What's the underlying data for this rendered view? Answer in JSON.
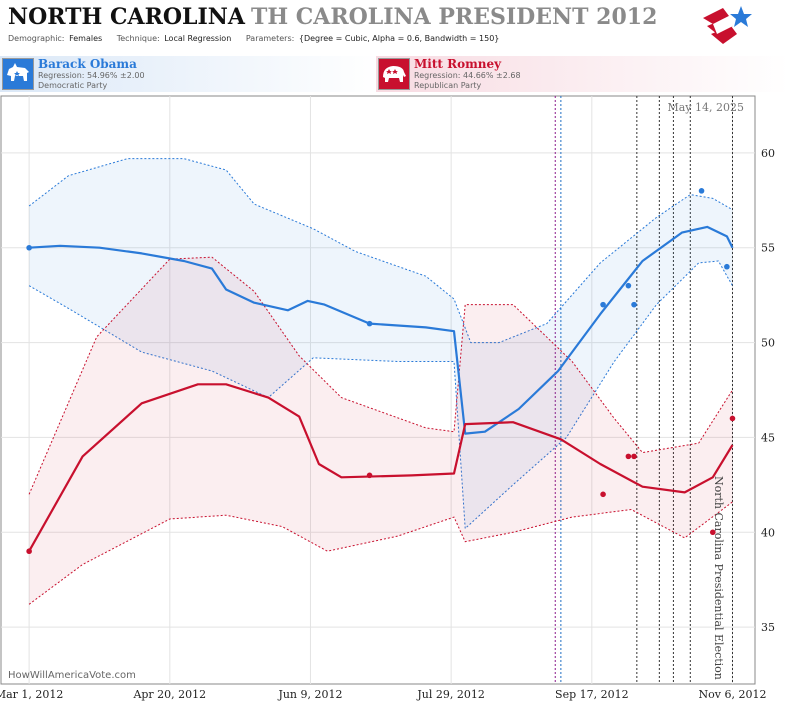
{
  "header": {
    "state": "NORTH CAROLINA",
    "race": "TH CAROLINA PRESIDENT 2012",
    "demographic_label": "Demographic:",
    "demographic_value": "Females",
    "technique_label": "Technique:",
    "technique_value": "Local Regression",
    "parameters_label": "Parameters:",
    "parameters_value": "{Degree = Cubic, Alpha = 0.6, Bandwidth = 150}"
  },
  "candidates": {
    "obama": {
      "name": "Barack Obama",
      "regression": "Regression: 54.96% ±2.00",
      "party": "Democratic Party",
      "color": "#2a7ad8"
    },
    "romney": {
      "name": "Mitt Romney",
      "regression": "Regression: 44.66% ±2.68",
      "party": "Republican Party",
      "color": "#c8102e"
    }
  },
  "chart_data": {
    "type": "line",
    "date_label": "May 14, 2025",
    "election_label": "North Carolina Presidential Election",
    "watermark": "HowWillAmericaVote.com",
    "x_tick_labels": [
      "Mar 1, 2012",
      "Apr 20, 2012",
      "Jun 9, 2012",
      "Jul 29, 2012",
      "Sep 17, 2012",
      "Nov 6, 2012"
    ],
    "x_ticks": [
      "2012-03-01",
      "2012-04-20",
      "2012-06-09",
      "2012-07-29",
      "2012-09-17",
      "2012-11-06"
    ],
    "x_range": [
      "2012-02-20",
      "2012-11-14"
    ],
    "y_ticks": [
      35,
      40,
      45,
      50,
      55,
      60
    ],
    "ylim": [
      32,
      63
    ],
    "grid": true,
    "event_lines": [
      {
        "date": "2012-09-04",
        "color": "#8b1a8b"
      },
      {
        "date": "2012-09-06",
        "color": "#1f6fc4"
      },
      {
        "date": "2012-10-03",
        "color": "#333333"
      },
      {
        "date": "2012-10-11",
        "color": "#333333"
      },
      {
        "date": "2012-10-16",
        "color": "#333333"
      },
      {
        "date": "2012-10-22",
        "color": "#333333"
      },
      {
        "date": "2012-11-06",
        "color": "#333333"
      }
    ],
    "series": [
      {
        "name": "Barack Obama",
        "color": "#2a7ad8",
        "points": [
          {
            "date": "2012-03-01",
            "value": 55
          },
          {
            "date": "2012-06-30",
            "value": 51
          },
          {
            "date": "2012-09-21",
            "value": 52
          },
          {
            "date": "2012-09-30",
            "value": 53
          },
          {
            "date": "2012-10-02",
            "value": 52
          },
          {
            "date": "2012-10-26",
            "value": 58
          },
          {
            "date": "2012-11-04",
            "value": 54
          }
        ],
        "trend": [
          {
            "date": "2012-03-01",
            "value": 55.0
          },
          {
            "date": "2012-03-12",
            "value": 55.1
          },
          {
            "date": "2012-03-26",
            "value": 55.0
          },
          {
            "date": "2012-04-10",
            "value": 54.7
          },
          {
            "date": "2012-04-25",
            "value": 54.3
          },
          {
            "date": "2012-05-05",
            "value": 53.9
          },
          {
            "date": "2012-05-10",
            "value": 52.8
          },
          {
            "date": "2012-05-20",
            "value": 52.1
          },
          {
            "date": "2012-06-01",
            "value": 51.7
          },
          {
            "date": "2012-06-08",
            "value": 52.2
          },
          {
            "date": "2012-06-14",
            "value": 52.0
          },
          {
            "date": "2012-06-30",
            "value": 51.0
          },
          {
            "date": "2012-07-20",
            "value": 50.8
          },
          {
            "date": "2012-07-30",
            "value": 50.6
          },
          {
            "date": "2012-08-03",
            "value": 45.2
          },
          {
            "date": "2012-08-10",
            "value": 45.3
          },
          {
            "date": "2012-08-22",
            "value": 46.5
          },
          {
            "date": "2012-09-05",
            "value": 48.5
          },
          {
            "date": "2012-09-20",
            "value": 51.5
          },
          {
            "date": "2012-10-05",
            "value": 54.3
          },
          {
            "date": "2012-10-19",
            "value": 55.8
          },
          {
            "date": "2012-10-28",
            "value": 56.1
          },
          {
            "date": "2012-11-04",
            "value": 55.6
          },
          {
            "date": "2012-11-06",
            "value": 55.0
          }
        ],
        "upper": [
          {
            "date": "2012-03-01",
            "value": 57.2
          },
          {
            "date": "2012-03-15",
            "value": 58.8
          },
          {
            "date": "2012-04-05",
            "value": 59.7
          },
          {
            "date": "2012-04-25",
            "value": 59.7
          },
          {
            "date": "2012-05-10",
            "value": 59.1
          },
          {
            "date": "2012-05-20",
            "value": 57.3
          },
          {
            "date": "2012-06-10",
            "value": 56.0
          },
          {
            "date": "2012-06-25",
            "value": 54.8
          },
          {
            "date": "2012-07-20",
            "value": 53.5
          },
          {
            "date": "2012-07-30",
            "value": 52.3
          },
          {
            "date": "2012-08-05",
            "value": 50.0
          },
          {
            "date": "2012-08-15",
            "value": 50.0
          },
          {
            "date": "2012-09-01",
            "value": 51.0
          },
          {
            "date": "2012-09-20",
            "value": 54.2
          },
          {
            "date": "2012-10-10",
            "value": 56.6
          },
          {
            "date": "2012-10-22",
            "value": 57.8
          },
          {
            "date": "2012-10-30",
            "value": 57.6
          },
          {
            "date": "2012-11-06",
            "value": 57.0
          }
        ],
        "lower": [
          {
            "date": "2012-03-01",
            "value": 53.0
          },
          {
            "date": "2012-03-15",
            "value": 51.8
          },
          {
            "date": "2012-04-10",
            "value": 49.5
          },
          {
            "date": "2012-05-05",
            "value": 48.5
          },
          {
            "date": "2012-05-25",
            "value": 47.1
          },
          {
            "date": "2012-06-10",
            "value": 49.2
          },
          {
            "date": "2012-07-10",
            "value": 49.0
          },
          {
            "date": "2012-07-30",
            "value": 49.0
          },
          {
            "date": "2012-08-03",
            "value": 40.2
          },
          {
            "date": "2012-08-20",
            "value": 42.5
          },
          {
            "date": "2012-09-08",
            "value": 45.0
          },
          {
            "date": "2012-09-25",
            "value": 49.0
          },
          {
            "date": "2012-10-10",
            "value": 52.0
          },
          {
            "date": "2012-10-25",
            "value": 54.2
          },
          {
            "date": "2012-11-01",
            "value": 54.3
          },
          {
            "date": "2012-11-06",
            "value": 53.0
          }
        ]
      },
      {
        "name": "Mitt Romney",
        "color": "#c8102e",
        "points": [
          {
            "date": "2012-03-01",
            "value": 39
          },
          {
            "date": "2012-06-30",
            "value": 43
          },
          {
            "date": "2012-09-21",
            "value": 42
          },
          {
            "date": "2012-09-30",
            "value": 44
          },
          {
            "date": "2012-10-02",
            "value": 44
          },
          {
            "date": "2012-10-30",
            "value": 40
          },
          {
            "date": "2012-11-06",
            "value": 46
          }
        ],
        "trend": [
          {
            "date": "2012-03-01",
            "value": 39.0
          },
          {
            "date": "2012-03-20",
            "value": 44.0
          },
          {
            "date": "2012-04-10",
            "value": 46.8
          },
          {
            "date": "2012-04-30",
            "value": 47.8
          },
          {
            "date": "2012-05-10",
            "value": 47.8
          },
          {
            "date": "2012-05-25",
            "value": 47.1
          },
          {
            "date": "2012-06-05",
            "value": 46.1
          },
          {
            "date": "2012-06-12",
            "value": 43.6
          },
          {
            "date": "2012-06-20",
            "value": 42.9
          },
          {
            "date": "2012-07-15",
            "value": 43.0
          },
          {
            "date": "2012-07-30",
            "value": 43.1
          },
          {
            "date": "2012-08-03",
            "value": 45.7
          },
          {
            "date": "2012-08-20",
            "value": 45.8
          },
          {
            "date": "2012-09-06",
            "value": 44.9
          },
          {
            "date": "2012-09-20",
            "value": 43.6
          },
          {
            "date": "2012-10-05",
            "value": 42.4
          },
          {
            "date": "2012-10-20",
            "value": 42.1
          },
          {
            "date": "2012-10-30",
            "value": 42.9
          },
          {
            "date": "2012-11-06",
            "value": 44.6
          }
        ],
        "upper": [
          {
            "date": "2012-03-01",
            "value": 42.0
          },
          {
            "date": "2012-03-25",
            "value": 50.3
          },
          {
            "date": "2012-04-20",
            "value": 54.4
          },
          {
            "date": "2012-05-05",
            "value": 54.5
          },
          {
            "date": "2012-05-20",
            "value": 52.7
          },
          {
            "date": "2012-06-05",
            "value": 49.3
          },
          {
            "date": "2012-06-20",
            "value": 47.1
          },
          {
            "date": "2012-07-20",
            "value": 45.5
          },
          {
            "date": "2012-07-30",
            "value": 45.3
          },
          {
            "date": "2012-08-03",
            "value": 52.0
          },
          {
            "date": "2012-08-20",
            "value": 52.0
          },
          {
            "date": "2012-09-10",
            "value": 49.0
          },
          {
            "date": "2012-09-25",
            "value": 46.0
          },
          {
            "date": "2012-10-05",
            "value": 44.2
          },
          {
            "date": "2012-10-25",
            "value": 44.7
          },
          {
            "date": "2012-11-06",
            "value": 47.5
          }
        ],
        "lower": [
          {
            "date": "2012-03-01",
            "value": 36.2
          },
          {
            "date": "2012-03-20",
            "value": 38.3
          },
          {
            "date": "2012-04-20",
            "value": 40.7
          },
          {
            "date": "2012-05-10",
            "value": 40.9
          },
          {
            "date": "2012-05-30",
            "value": 40.3
          },
          {
            "date": "2012-06-15",
            "value": 39.0
          },
          {
            "date": "2012-07-10",
            "value": 39.8
          },
          {
            "date": "2012-07-30",
            "value": 40.8
          },
          {
            "date": "2012-08-03",
            "value": 39.5
          },
          {
            "date": "2012-08-20",
            "value": 40.0
          },
          {
            "date": "2012-09-10",
            "value": 40.8
          },
          {
            "date": "2012-10-01",
            "value": 41.2
          },
          {
            "date": "2012-10-20",
            "value": 39.7
          },
          {
            "date": "2012-11-06",
            "value": 41.6
          }
        ]
      }
    ]
  }
}
